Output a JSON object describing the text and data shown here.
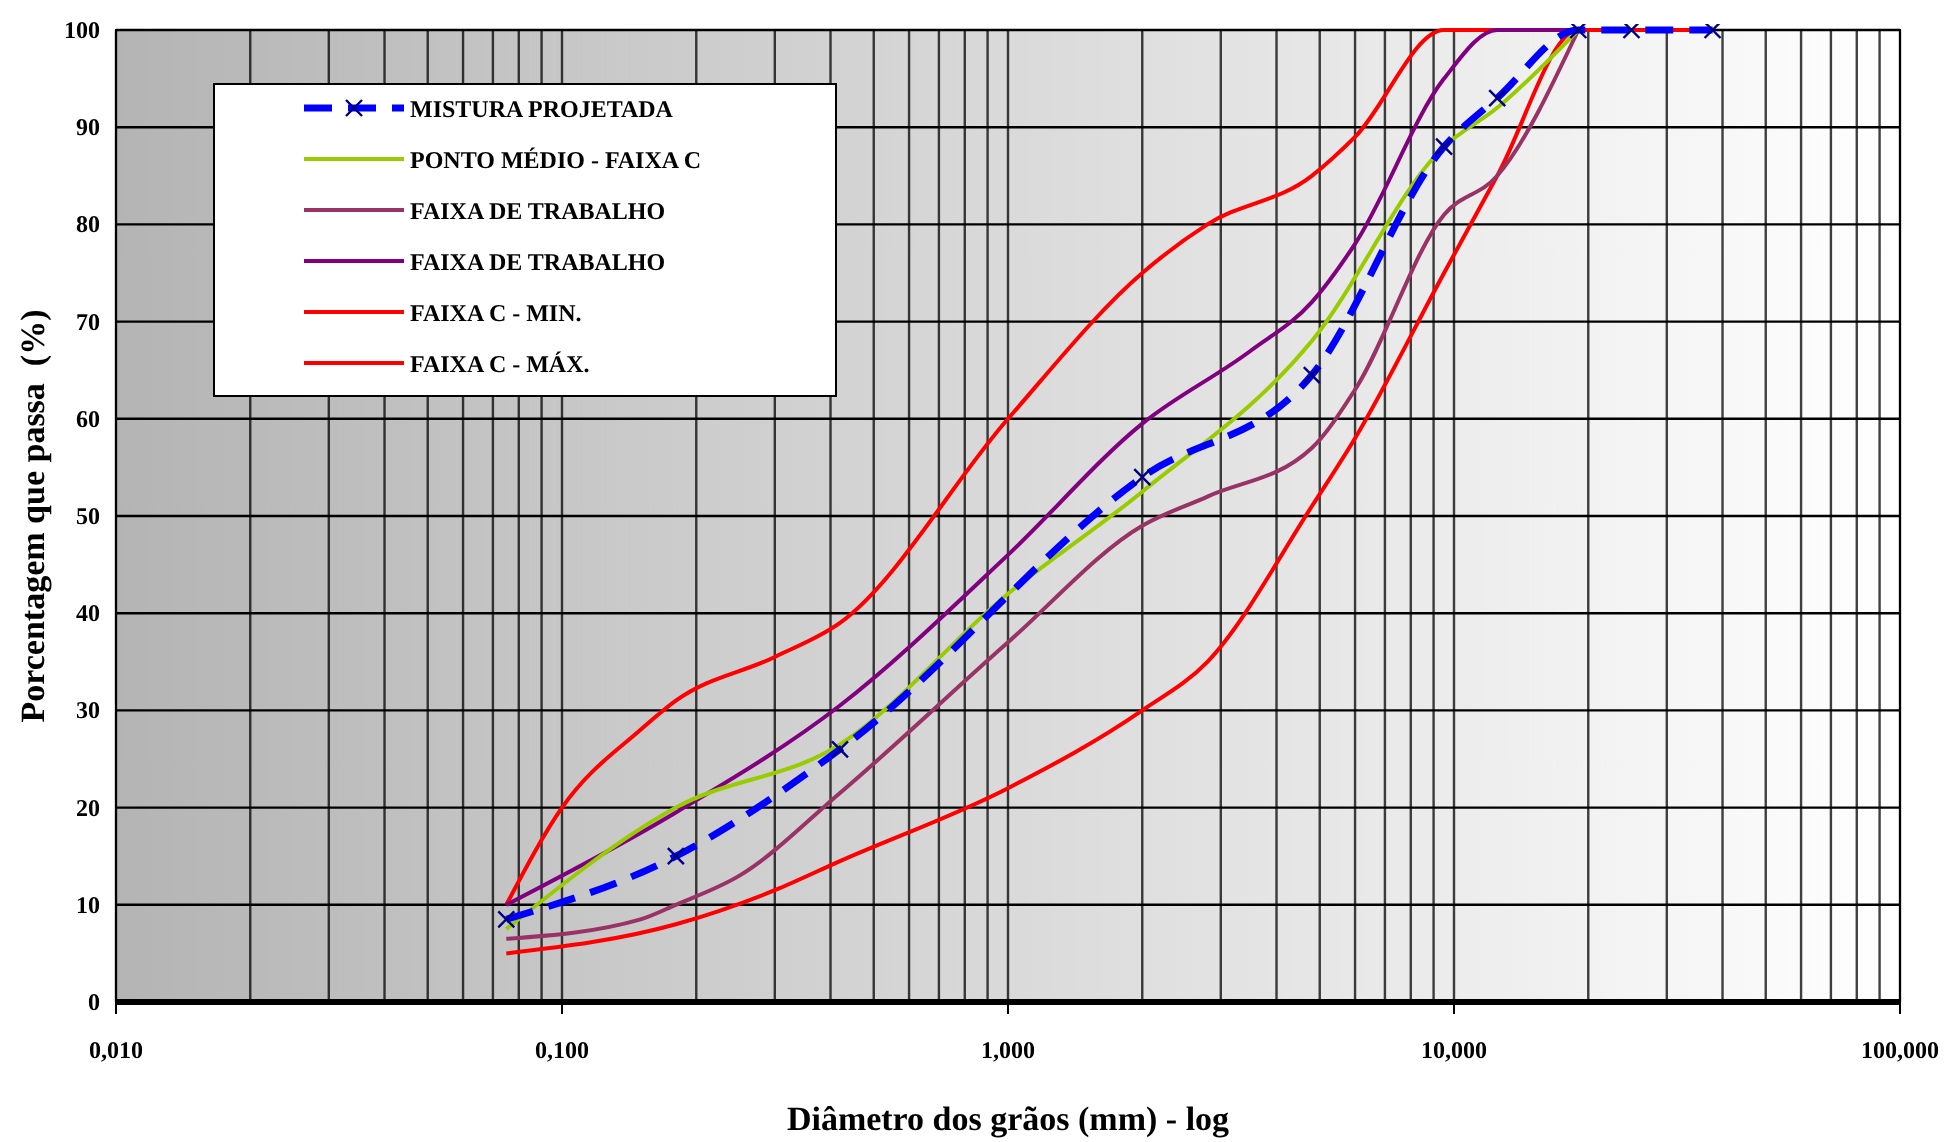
{
  "chart_data": {
    "type": "line",
    "xlabel": "Diâmetro dos grãos (mm) - log",
    "ylabel": "Porcentagem que passa  (%)",
    "log": "x",
    "xlim": [
      0.01,
      100
    ],
    "xticks": [
      {
        "value": 0.01,
        "label": "0,010"
      },
      {
        "value": 0.1,
        "label": "0,100"
      },
      {
        "value": 1,
        "label": "1,000"
      },
      {
        "value": 10,
        "label": "10,000"
      },
      {
        "value": 100,
        "label": "100,000"
      }
    ],
    "ylim": [
      0,
      100
    ],
    "yticks": [
      0,
      10,
      20,
      30,
      40,
      50,
      60,
      70,
      80,
      90,
      100
    ],
    "grid": true,
    "legend": "top left",
    "series": [
      {
        "name": "MISTURA PROJETADA",
        "color": "#0000ff",
        "line_style": "dashed",
        "marker": "cross",
        "x": [
          0.075,
          0.18,
          0.42,
          2.0,
          4.8,
          9.5,
          12.5,
          19,
          25,
          38
        ],
        "values": [
          8.5,
          15,
          26,
          54,
          64.5,
          88,
          93,
          100,
          100,
          100
        ]
      },
      {
        "name": "PONTO MÉDIO - FAIXA C",
        "color": "#99cc00",
        "line_style": "solid",
        "marker": "none",
        "x": [
          0.075,
          0.18,
          0.42,
          1.0,
          2.0,
          4.8,
          9.5,
          12.5,
          19
        ],
        "values": [
          7.5,
          20,
          26.5,
          42,
          52.5,
          68,
          88,
          92,
          100
        ]
      },
      {
        "name": "FAIXA DE TRABALHO",
        "color": "#993366",
        "line_style": "solid",
        "marker": "none",
        "x": [
          0.075,
          0.15,
          0.18,
          0.25,
          0.42,
          1.0,
          2.0,
          2.8,
          4.8,
          6,
          9.5,
          12.5,
          19
        ],
        "values": [
          6.5,
          8.5,
          10,
          13,
          21.5,
          37,
          49,
          52,
          57,
          63,
          81,
          85,
          100
        ]
      },
      {
        "name": "FAIXA DE TRABALHO",
        "color": "#800080",
        "line_style": "solid",
        "marker": "none",
        "x": [
          0.075,
          0.18,
          0.42,
          1.0,
          2.0,
          3.5,
          4.8,
          6,
          9.5,
          12.5,
          19
        ],
        "values": [
          10,
          19.5,
          30.5,
          46,
          59.5,
          67,
          72,
          78,
          95,
          100,
          100
        ]
      },
      {
        "name": "FAIXA C - MIN.",
        "color": "#ff0000",
        "line_style": "solid",
        "marker": "none",
        "x": [
          0.075,
          0.18,
          0.3,
          0.42,
          1.0,
          2.0,
          2.8,
          4.8,
          6,
          9.5,
          12.5,
          19,
          25,
          38
        ],
        "values": [
          5,
          8,
          11.5,
          14.5,
          22,
          30,
          35,
          51,
          58,
          75,
          85,
          100,
          100,
          100
        ]
      },
      {
        "name": "FAIXA C - MÁX.",
        "color": "#ff0000",
        "line_style": "solid",
        "marker": "none",
        "x": [
          0.075,
          0.1,
          0.15,
          0.18,
          0.3,
          0.42,
          1.0,
          2.0,
          2.8,
          4.8,
          6,
          9.5,
          12.5,
          19,
          25,
          38
        ],
        "values": [
          10,
          20,
          28,
          31,
          35.5,
          39,
          60,
          75,
          80,
          85,
          89,
          100,
          100,
          100,
          100,
          100
        ]
      }
    ]
  }
}
